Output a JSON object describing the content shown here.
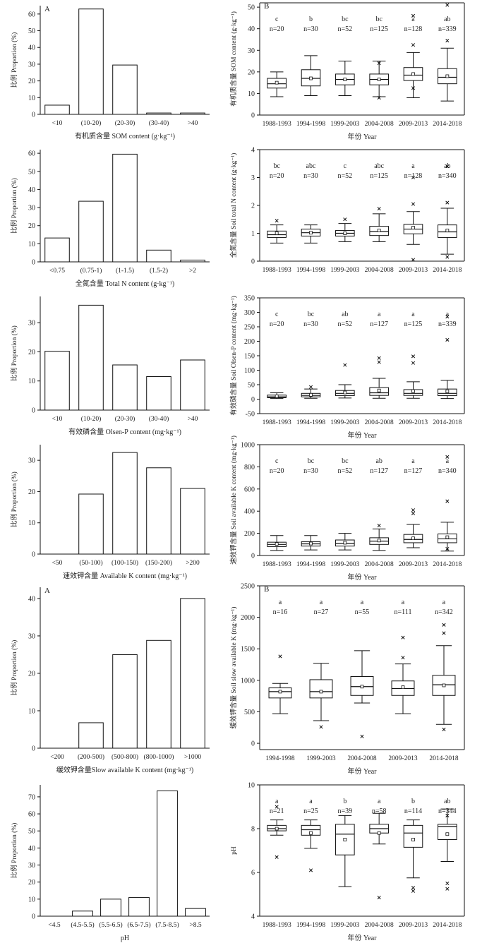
{
  "chart_data": [
    {
      "type": "bar",
      "panel_label": "A",
      "categories": [
        "<10",
        "(10-20)",
        "(20-30)",
        "(30-40)",
        ">40"
      ],
      "values": [
        5.5,
        63,
        29.5,
        0.8,
        0.8
      ],
      "ylabel": "比例 Proportion (%)",
      "xlabel": "有机质含量 SOM content (g·kg⁻¹)",
      "ylim": [
        0,
        65
      ],
      "yticks": [
        0,
        10,
        20,
        30,
        40,
        50,
        60
      ]
    },
    {
      "type": "box",
      "panel_label": "B",
      "categories": [
        "1988-1993",
        "1994-1998",
        "1999-2003",
        "2004-2008",
        "2009-2013",
        "2014-2018"
      ],
      "letters": [
        "c",
        "b",
        "bc",
        "bc",
        "a",
        "ab"
      ],
      "counts": [
        "n=20",
        "n=30",
        "n=52",
        "n=125",
        "n=128",
        "n=339"
      ],
      "boxes": [
        {
          "min": 8.5,
          "q1": 12.5,
          "median": 14.5,
          "q3": 17,
          "max": 20,
          "mean": 15,
          "outliers": []
        },
        {
          "min": 9,
          "q1": 13.5,
          "median": 17,
          "q3": 21,
          "max": 27.5,
          "mean": 17,
          "outliers": []
        },
        {
          "min": 9,
          "q1": 14,
          "median": 16.5,
          "q3": 19,
          "max": 25,
          "mean": 16.5,
          "outliers": []
        },
        {
          "min": 8.5,
          "q1": 14,
          "median": 16.5,
          "q3": 19,
          "max": 25,
          "mean": 16.5,
          "outliers": [
            8,
            24
          ]
        },
        {
          "min": 8,
          "q1": 16,
          "median": 18.5,
          "q3": 22,
          "max": 29,
          "mean": 19,
          "outliers": [
            12.5,
            32.5,
            46
          ]
        },
        {
          "min": 6.5,
          "q1": 14.5,
          "median": 17.5,
          "q3": 21.5,
          "max": 31,
          "mean": 18,
          "outliers": [
            34.5,
            51
          ]
        }
      ],
      "ylabel": "有机质含量 SOM content (g·kg⁻¹)",
      "xlabel": "年份 Year",
      "ylim": [
        0,
        52
      ],
      "yticks": [
        0,
        10,
        20,
        30,
        40,
        50
      ]
    },
    {
      "type": "bar",
      "panel_label": "",
      "categories": [
        "<0.75",
        "(0.75-1)",
        "(1-1.5)",
        "(1.5-2)",
        ">2"
      ],
      "values": [
        13.2,
        33.5,
        59.5,
        6.5,
        1
      ],
      "ylabel": "比例 Proportion (%)",
      "xlabel": "全氮含量 Total N content (g·kg⁻¹)",
      "ylim": [
        0,
        62
      ],
      "yticks": [
        0,
        10,
        20,
        30,
        40,
        50,
        60
      ]
    },
    {
      "type": "box",
      "panel_label": "",
      "categories": [
        "1988-1993",
        "1994-1998",
        "1999-2003",
        "2004-2008",
        "2009-2013",
        "2014-2018"
      ],
      "letters": [
        "bc",
        "abc",
        "c",
        "abc",
        "a",
        "ab"
      ],
      "counts": [
        "n=20",
        "n=30",
        "n=52",
        "n=125",
        "n=128",
        "n=340"
      ],
      "boxes": [
        {
          "min": 0.65,
          "q1": 0.85,
          "median": 0.95,
          "q3": 1.08,
          "max": 1.3,
          "mean": 1.0,
          "outliers": [
            1.45
          ]
        },
        {
          "min": 0.65,
          "q1": 0.9,
          "median": 1.02,
          "q3": 1.15,
          "max": 1.3,
          "mean": 1.02,
          "outliers": []
        },
        {
          "min": 0.7,
          "q1": 0.9,
          "median": 1.0,
          "q3": 1.1,
          "max": 1.35,
          "mean": 1.0,
          "outliers": [
            1.5
          ]
        },
        {
          "min": 0.7,
          "q1": 0.92,
          "median": 1.06,
          "q3": 1.25,
          "max": 1.7,
          "mean": 1.1,
          "outliers": [
            1.88
          ]
        },
        {
          "min": 0.6,
          "q1": 0.98,
          "median": 1.15,
          "q3": 1.32,
          "max": 1.78,
          "mean": 1.2,
          "outliers": [
            0.05,
            2.05,
            3.0
          ]
        },
        {
          "min": 0.25,
          "q1": 0.85,
          "median": 1.05,
          "q3": 1.3,
          "max": 1.9,
          "mean": 1.1,
          "outliers": [
            0.15,
            2.1,
            3.4
          ]
        }
      ],
      "ylabel": "全氮含量 Soil total N content (g·kg⁻¹)",
      "xlabel": "",
      "ylim": [
        0,
        4
      ],
      "yticks": [
        0,
        1,
        2,
        3,
        4
      ]
    },
    {
      "type": "bar",
      "panel_label": "",
      "categories": [
        "<10",
        "(10-20)",
        "(20-30)",
        "(30-40)",
        ">40"
      ],
      "values": [
        20.2,
        36,
        15.5,
        11.5,
        17.2
      ],
      "ylabel": "比例 Proportion (%)",
      "xlabel": "有效磷含量 Olsen-P content (mg·kg⁻¹)",
      "ylim": [
        0,
        39
      ],
      "yticks": [
        0,
        10,
        20,
        30
      ]
    },
    {
      "type": "box",
      "panel_label": "",
      "categories": [
        "1988-1993",
        "1994-1998",
        "1999-2003",
        "2004-2008",
        "2009-2013",
        "2014-2018"
      ],
      "letters": [
        "c",
        "bc",
        "ab",
        "a",
        "a",
        "a"
      ],
      "counts": [
        "n=20",
        "n=30",
        "n=52",
        "n=127",
        "n=125",
        "n=339"
      ],
      "boxes": [
        {
          "min": 2,
          "q1": 5,
          "median": 8,
          "q3": 14,
          "max": 22,
          "mean": 10,
          "outliers": []
        },
        {
          "min": 3,
          "q1": 8,
          "median": 13,
          "q3": 20,
          "max": 35,
          "mean": 15,
          "outliers": [
            42
          ]
        },
        {
          "min": 4,
          "q1": 12,
          "median": 20,
          "q3": 30,
          "max": 50,
          "mean": 23,
          "outliers": [
            118
          ]
        },
        {
          "min": 3,
          "q1": 13,
          "median": 22,
          "q3": 40,
          "max": 72,
          "mean": 30,
          "outliers": [
            128,
            142
          ]
        },
        {
          "min": 3,
          "q1": 13,
          "median": 20,
          "q3": 33,
          "max": 60,
          "mean": 28,
          "outliers": [
            125,
            148
          ]
        },
        {
          "min": 2,
          "q1": 12,
          "median": 20,
          "q3": 35,
          "max": 65,
          "mean": 27,
          "outliers": [
            205,
            285
          ]
        }
      ],
      "ylabel": "有效磷含量 Soil Olsen-P content (mg·kg⁻¹)",
      "xlabel": "年份 Year",
      "ylim": [
        -50,
        350
      ],
      "yticks": [
        -50,
        0,
        50,
        100,
        150,
        200,
        250,
        300,
        350
      ]
    },
    {
      "type": "bar",
      "panel_label": "",
      "categories": [
        "<50",
        "(50-100)",
        "(100-150)",
        "(150-200)",
        ">200"
      ],
      "values": [
        0,
        19.2,
        32.5,
        27.6,
        21
      ],
      "ylabel": "比例 Proportion (%)",
      "xlabel": "速效钾含量 Available K content (mg·kg⁻¹)",
      "ylim": [
        0,
        35
      ],
      "yticks": [
        0,
        10,
        20,
        30
      ]
    },
    {
      "type": "box",
      "panel_label": "",
      "categories": [
        "1988-1993",
        "1994-1998",
        "1999-2003",
        "2004-2008",
        "2009-2013",
        "2014-2018"
      ],
      "letters": [
        "c",
        "bc",
        "bc",
        "ab",
        "a",
        "a"
      ],
      "counts": [
        "n=20",
        "n=30",
        "n=52",
        "n=127",
        "n=127",
        "n=340"
      ],
      "boxes": [
        {
          "min": 45,
          "q1": 80,
          "median": 100,
          "q3": 120,
          "max": 180,
          "mean": 105,
          "outliers": []
        },
        {
          "min": 50,
          "q1": 85,
          "median": 105,
          "q3": 125,
          "max": 180,
          "mean": 108,
          "outliers": []
        },
        {
          "min": 50,
          "q1": 85,
          "median": 110,
          "q3": 140,
          "max": 200,
          "mean": 115,
          "outliers": []
        },
        {
          "min": 45,
          "q1": 100,
          "median": 130,
          "q3": 160,
          "max": 240,
          "mean": 135,
          "outliers": [
            270
          ]
        },
        {
          "min": 70,
          "q1": 115,
          "median": 145,
          "q3": 190,
          "max": 280,
          "mean": 155,
          "outliers": [
            380,
            410
          ]
        },
        {
          "min": 40,
          "q1": 115,
          "median": 150,
          "q3": 195,
          "max": 300,
          "mean": 165,
          "outliers": [
            60,
            490,
            890
          ]
        }
      ],
      "ylabel": "速效钾含量 Soil available K content (mg·kg⁻¹)",
      "xlabel": "年份 Year",
      "ylim": [
        0,
        1000
      ],
      "yticks": [
        0,
        200,
        400,
        600,
        800,
        1000
      ]
    },
    {
      "type": "bar",
      "panel_label": "A",
      "categories": [
        "<200",
        "(200-500)",
        "(500-800)",
        "(800-1000)",
        ">1000"
      ],
      "values": [
        0,
        6.8,
        25,
        28.8,
        40
      ],
      "ylabel": "比例 Proportion (%)",
      "xlabel": "缓效钾含量Slow available K content (mg·kg⁻¹)",
      "ylim": [
        0,
        43
      ],
      "yticks": [
        0,
        10,
        20,
        30,
        40
      ]
    },
    {
      "type": "box",
      "panel_label": "B",
      "categories": [
        "1994-1998",
        "1999-2003",
        "2004-2008",
        "2009-2013",
        "2014-2018"
      ],
      "letters": [
        "a",
        "a",
        "a",
        "a",
        "a"
      ],
      "counts": [
        "n=16",
        "n=27",
        "n=55",
        "n=111",
        "n=342"
      ],
      "boxes": [
        {
          "min": 470,
          "q1": 720,
          "median": 820,
          "q3": 880,
          "max": 950,
          "mean": 820,
          "outliers": [
            1380
          ]
        },
        {
          "min": 360,
          "q1": 720,
          "median": 820,
          "q3": 1010,
          "max": 1270,
          "mean": 820,
          "outliers": [
            260
          ]
        },
        {
          "min": 640,
          "q1": 760,
          "median": 900,
          "q3": 1060,
          "max": 1470,
          "mean": 900,
          "outliers": [
            110
          ]
        },
        {
          "min": 470,
          "q1": 760,
          "median": 870,
          "q3": 990,
          "max": 1260,
          "mean": 890,
          "outliers": [
            1360,
            1680
          ]
        },
        {
          "min": 300,
          "q1": 760,
          "median": 930,
          "q3": 1080,
          "max": 1550,
          "mean": 920,
          "outliers": [
            220,
            1750,
            1880
          ]
        }
      ],
      "ylabel": "缓效钾含量 Soil slow available K (mg·kg⁻¹)",
      "xlabel": "年份 Year",
      "ylim": [
        -100,
        2500
      ],
      "yticks": [
        0,
        500,
        1000,
        1500,
        2000,
        2500
      ]
    },
    {
      "type": "bar",
      "panel_label": "",
      "categories": [
        "<4.5",
        "(4.5-5.5)",
        "(5.5-6.5)",
        "(6.5-7.5)",
        "(7.5-8.5)",
        ">8.5"
      ],
      "values": [
        0,
        3,
        10,
        11,
        73.5,
        4.5
      ],
      "ylabel": "比例 Proportion (%)",
      "xlabel": "pH",
      "ylim": [
        0,
        77
      ],
      "yticks": [
        0,
        10,
        20,
        30,
        40,
        50,
        60,
        70
      ]
    },
    {
      "type": "box",
      "panel_label": "",
      "categories": [
        "1988-1993",
        "1994-1998",
        "1999-2003",
        "2004-2008",
        "2009-2013",
        "2014-2018"
      ],
      "letters": [
        "a",
        "a",
        "b",
        "a",
        "b",
        "ab"
      ],
      "counts": [
        "n=21",
        "n=25",
        "n=39",
        "n=58",
        "n=114",
        "n=344"
      ],
      "boxes": [
        {
          "min": 7.7,
          "q1": 7.9,
          "median": 8.0,
          "q3": 8.15,
          "max": 8.4,
          "mean": 8.0,
          "outliers": [
            6.7,
            9.0
          ]
        },
        {
          "min": 7.1,
          "q1": 7.7,
          "median": 7.95,
          "q3": 8.15,
          "max": 8.4,
          "mean": 7.8,
          "outliers": [
            6.1
          ]
        },
        {
          "min": 5.35,
          "q1": 6.8,
          "median": 7.75,
          "q3": 8.2,
          "max": 8.6,
          "mean": 7.5,
          "outliers": []
        },
        {
          "min": 7.3,
          "q1": 7.8,
          "median": 8.0,
          "q3": 8.2,
          "max": 8.7,
          "mean": 7.8,
          "outliers": [
            4.85
          ]
        },
        {
          "min": 5.75,
          "q1": 7.15,
          "median": 7.8,
          "q3": 8.15,
          "max": 8.4,
          "mean": 7.5,
          "outliers": [
            5.15,
            5.3
          ]
        },
        {
          "min": 6.5,
          "q1": 7.5,
          "median": 8.1,
          "q3": 8.2,
          "max": 8.9,
          "mean": 7.75,
          "outliers": [
            5.25,
            5.5,
            8.6
          ]
        }
      ],
      "ylabel": "pH",
      "xlabel": "年份 Year",
      "ylim": [
        4,
        10
      ],
      "yticks": [
        4,
        6,
        8,
        10
      ]
    }
  ]
}
